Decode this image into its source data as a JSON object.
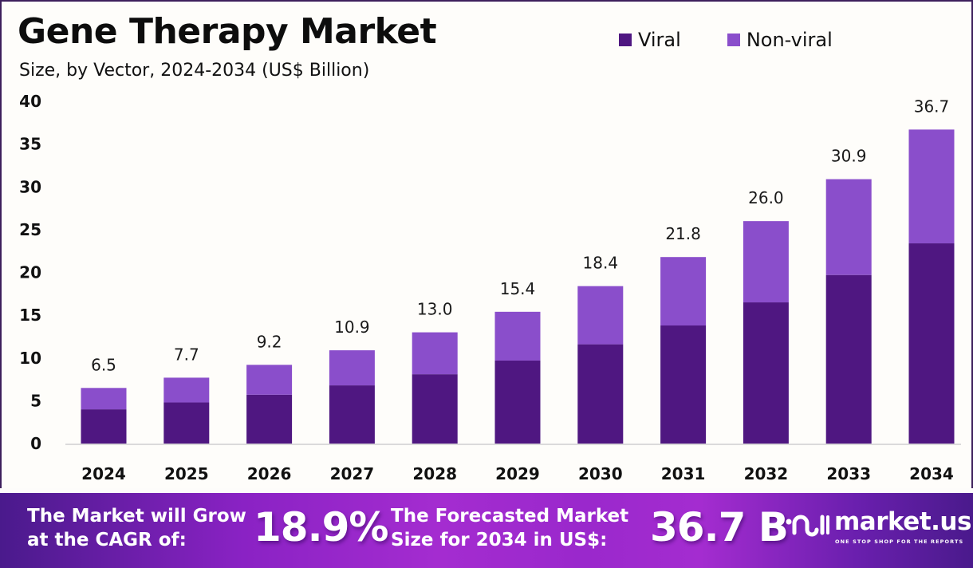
{
  "header": {
    "title": "Gene Therapy Market",
    "subtitle": "Size, by Vector, 2024-2034 (US$ Billion)"
  },
  "legend": [
    {
      "label": "Viral",
      "color": "#4f1781"
    },
    {
      "label": "Non-viral",
      "color": "#8a4ecb"
    }
  ],
  "chart_data": {
    "type": "bar",
    "stacked": true,
    "title": "Gene Therapy Market",
    "subtitle": "Size, by Vector, 2024-2034 (US$ Billion)",
    "xlabel": "",
    "ylabel": "",
    "categories": [
      "2024",
      "2025",
      "2026",
      "2027",
      "2028",
      "2029",
      "2030",
      "2031",
      "2032",
      "2033",
      "2034"
    ],
    "series": [
      {
        "name": "Viral",
        "color": "#4f1781",
        "values": [
          4.0,
          4.8,
          5.7,
          6.8,
          8.1,
          9.7,
          11.6,
          13.8,
          16.5,
          19.7,
          23.4
        ]
      },
      {
        "name": "Non-viral",
        "color": "#8a4ecb",
        "values": [
          2.5,
          2.9,
          3.5,
          4.1,
          4.9,
          5.7,
          6.8,
          8.0,
          9.5,
          11.2,
          13.3
        ]
      }
    ],
    "totals": [
      6.5,
      7.7,
      9.2,
      10.9,
      13.0,
      15.4,
      18.4,
      21.8,
      26.0,
      30.9,
      36.7
    ],
    "total_labels": [
      "6.5",
      "7.7",
      "9.2",
      "10.9",
      "13.0",
      "15.4",
      "18.4",
      "21.8",
      "26.0",
      "30.9",
      "36.7"
    ],
    "yticks": [
      0,
      5,
      10,
      15,
      20,
      25,
      30,
      35,
      40
    ],
    "ylim": [
      0,
      40
    ],
    "grid": false,
    "legend_position": "top-right"
  },
  "banner": {
    "cagr_text_line1": "The Market will Grow",
    "cagr_text_line2": "at the CAGR of:",
    "cagr_value": "18.9%",
    "forecast_text_line1": "The Forecasted Market",
    "forecast_text_line2": "Size for 2034 in US$:",
    "forecast_value": "36.7 B",
    "brand_name": "market.us",
    "brand_tagline": "ONE STOP SHOP FOR THE REPORTS"
  }
}
